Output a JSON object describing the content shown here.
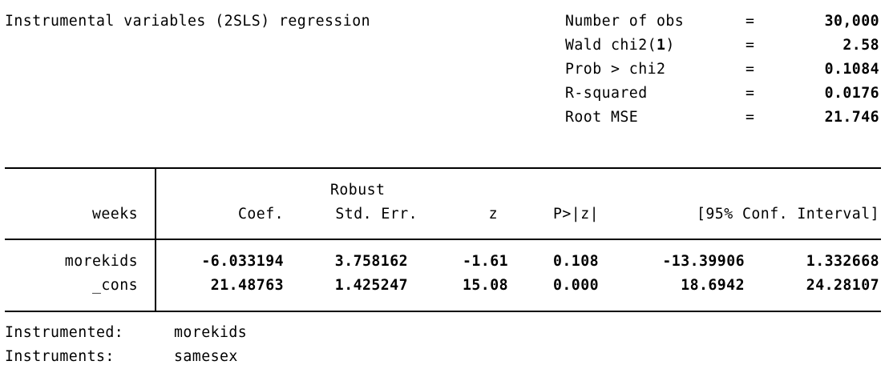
{
  "header": {
    "title": "Instrumental variables (2SLS) regression",
    "stats": [
      {
        "label": "Number of obs",
        "eq": "=",
        "value": "30,000"
      },
      {
        "label_pre": "Wald chi2(",
        "label_df": "1",
        "label_post": ")",
        "eq": "=",
        "value": "2.58"
      },
      {
        "label": "Prob > chi2",
        "eq": "=",
        "value": "0.1084"
      },
      {
        "label": "R-squared",
        "eq": "=",
        "value": "0.0176"
      },
      {
        "label": "Root MSE",
        "eq": "=",
        "value": "21.746"
      }
    ]
  },
  "table": {
    "depvar": "weeks",
    "robust_label": "Robust",
    "columns": [
      "Coef.",
      "Std. Err.",
      "z",
      "P>|z|",
      "[95% Conf. Interval]"
    ],
    "rows": [
      {
        "name": "morekids",
        "coef": "-6.033194",
        "se": "3.758162",
        "z": "-1.61",
        "p": "0.108",
        "ci_low": "-13.39906",
        "ci_high": "1.332668"
      },
      {
        "name": "_cons",
        "coef": "21.48763",
        "se": "1.425247",
        "z": "15.08",
        "p": "0.000",
        "ci_low": "18.6942",
        "ci_high": "24.28107"
      }
    ]
  },
  "footer": {
    "instrumented_label": "Instrumented:",
    "instrumented_value": "morekids",
    "instruments_label": "Instruments:",
    "instruments_value": "samesex"
  }
}
